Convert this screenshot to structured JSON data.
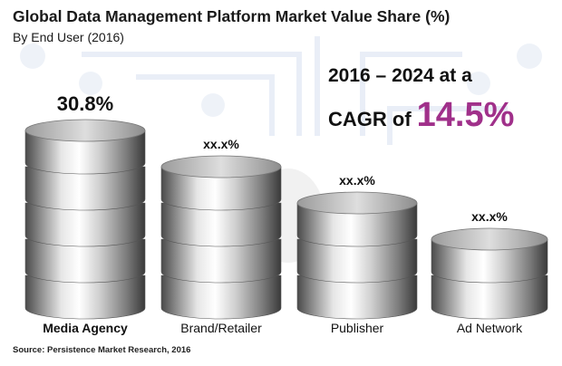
{
  "header": {
    "title": "Global Data Management Platform Market Value Share (%)",
    "subtitle": "By End User (2016)"
  },
  "callout": {
    "line1": "2016 – 2024 at a",
    "cagr_label": "CAGR of",
    "cagr_value": "14.5%",
    "accent_color": "#a0308a"
  },
  "source": "Source: Persistence Market Research, 2016",
  "chart_data": {
    "type": "bar",
    "categories": [
      "Media Agency",
      "Brand/Retailer",
      "Publisher",
      "Ad Network"
    ],
    "value_labels": [
      "30.8%",
      "xx.x%",
      "xx.x%",
      "xx.x%"
    ],
    "values": [
      30.8,
      null,
      null,
      null
    ],
    "style": "stacked database cylinders",
    "cylinder_discs": [
      5,
      4,
      3,
      2
    ]
  }
}
